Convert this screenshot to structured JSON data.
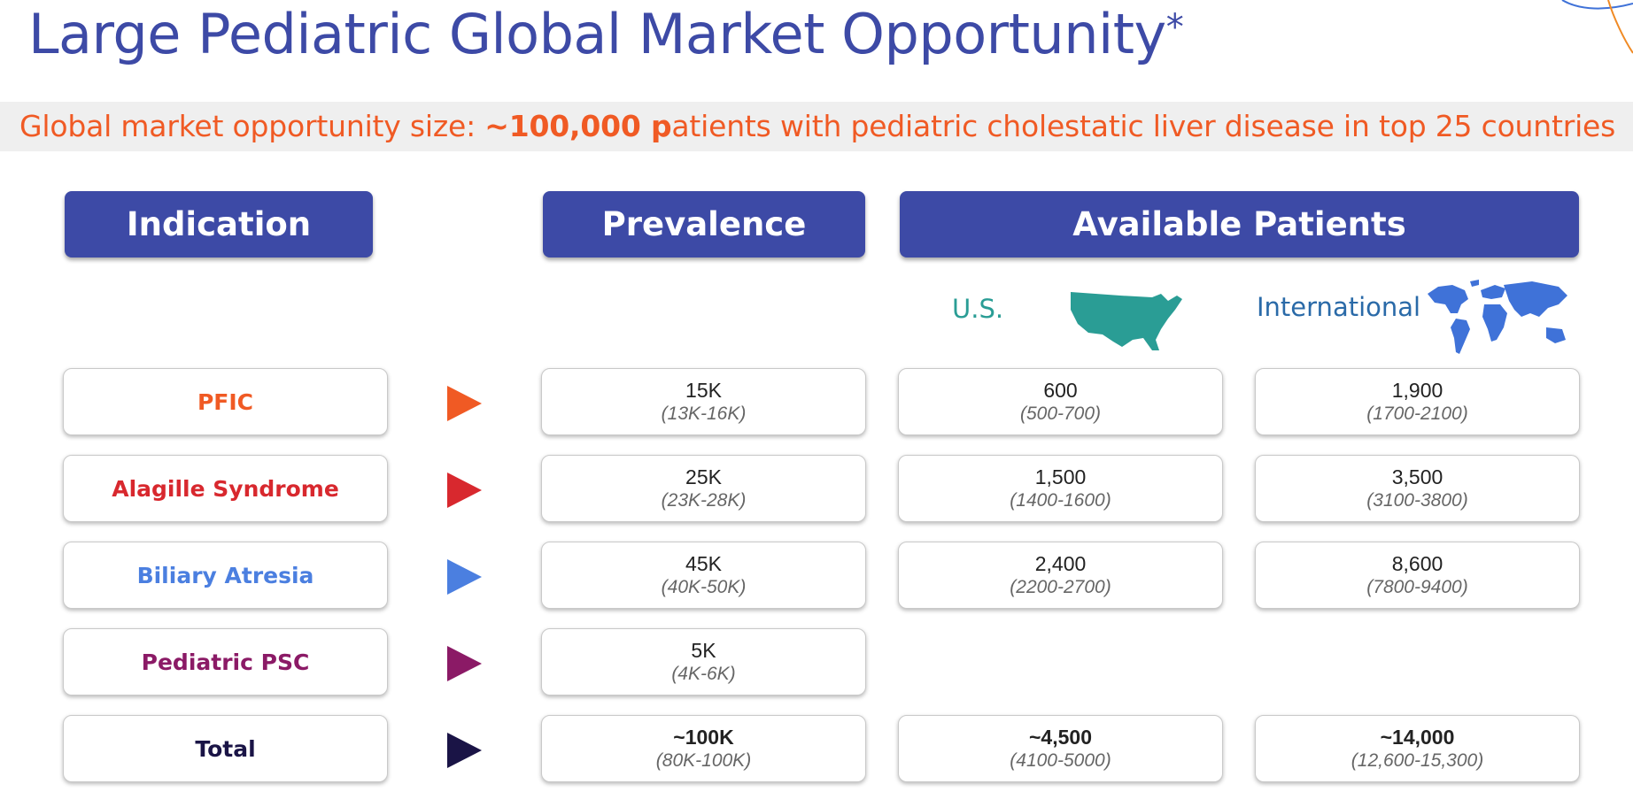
{
  "title": "Large Pediatric Global Market Opportunity",
  "title_marker": "*",
  "banner": {
    "prefix": "Global market opportunity size: ",
    "highlight": "~100,000 p",
    "suffix": "atients with pediatric cholestatic liver disease in top 25 countries"
  },
  "headers": {
    "indication": "Indication",
    "prevalence": "Prevalence",
    "available": "Available Patients"
  },
  "regions": {
    "us": "U.S.",
    "international": "International"
  },
  "rows": [
    {
      "indication": "PFIC",
      "color": "#f05a24",
      "prevalence": "15K",
      "prevalence_range": "(13K-16K)",
      "us": "600",
      "us_range": "(500-700)",
      "intl": "1,900",
      "intl_range": "(1700-2100)"
    },
    {
      "indication": "Alagille Syndrome",
      "color": "#d8282e",
      "prevalence": "25K",
      "prevalence_range": "(23K-28K)",
      "us": "1,500",
      "us_range": "(1400-1600)",
      "intl": "3,500",
      "intl_range": "(3100-3800)"
    },
    {
      "indication": "Biliary Atresia",
      "color": "#4b7fe0",
      "prevalence": "45K",
      "prevalence_range": "(40K-50K)",
      "us": "2,400",
      "us_range": "(2200-2700)",
      "intl": "8,600",
      "intl_range": "(7800-9400)"
    },
    {
      "indication": "Pediatric PSC",
      "color": "#8b1a66",
      "prevalence": "5K",
      "prevalence_range": "(4K-6K)"
    },
    {
      "indication": "Total",
      "color": "#1a1446",
      "prevalence": "~100K",
      "prevalence_range": "(80K-100K)",
      "us": "~4,500",
      "us_range": "(4100-5000)",
      "intl": "~14,000",
      "intl_range": "(12,600-15,300)",
      "bold": true
    }
  ],
  "colors": {
    "header_bg": "#3d4aa6",
    "banner_text": "#f05a24",
    "us_map": "#2a9d95",
    "world_map": "#3f72d8"
  }
}
